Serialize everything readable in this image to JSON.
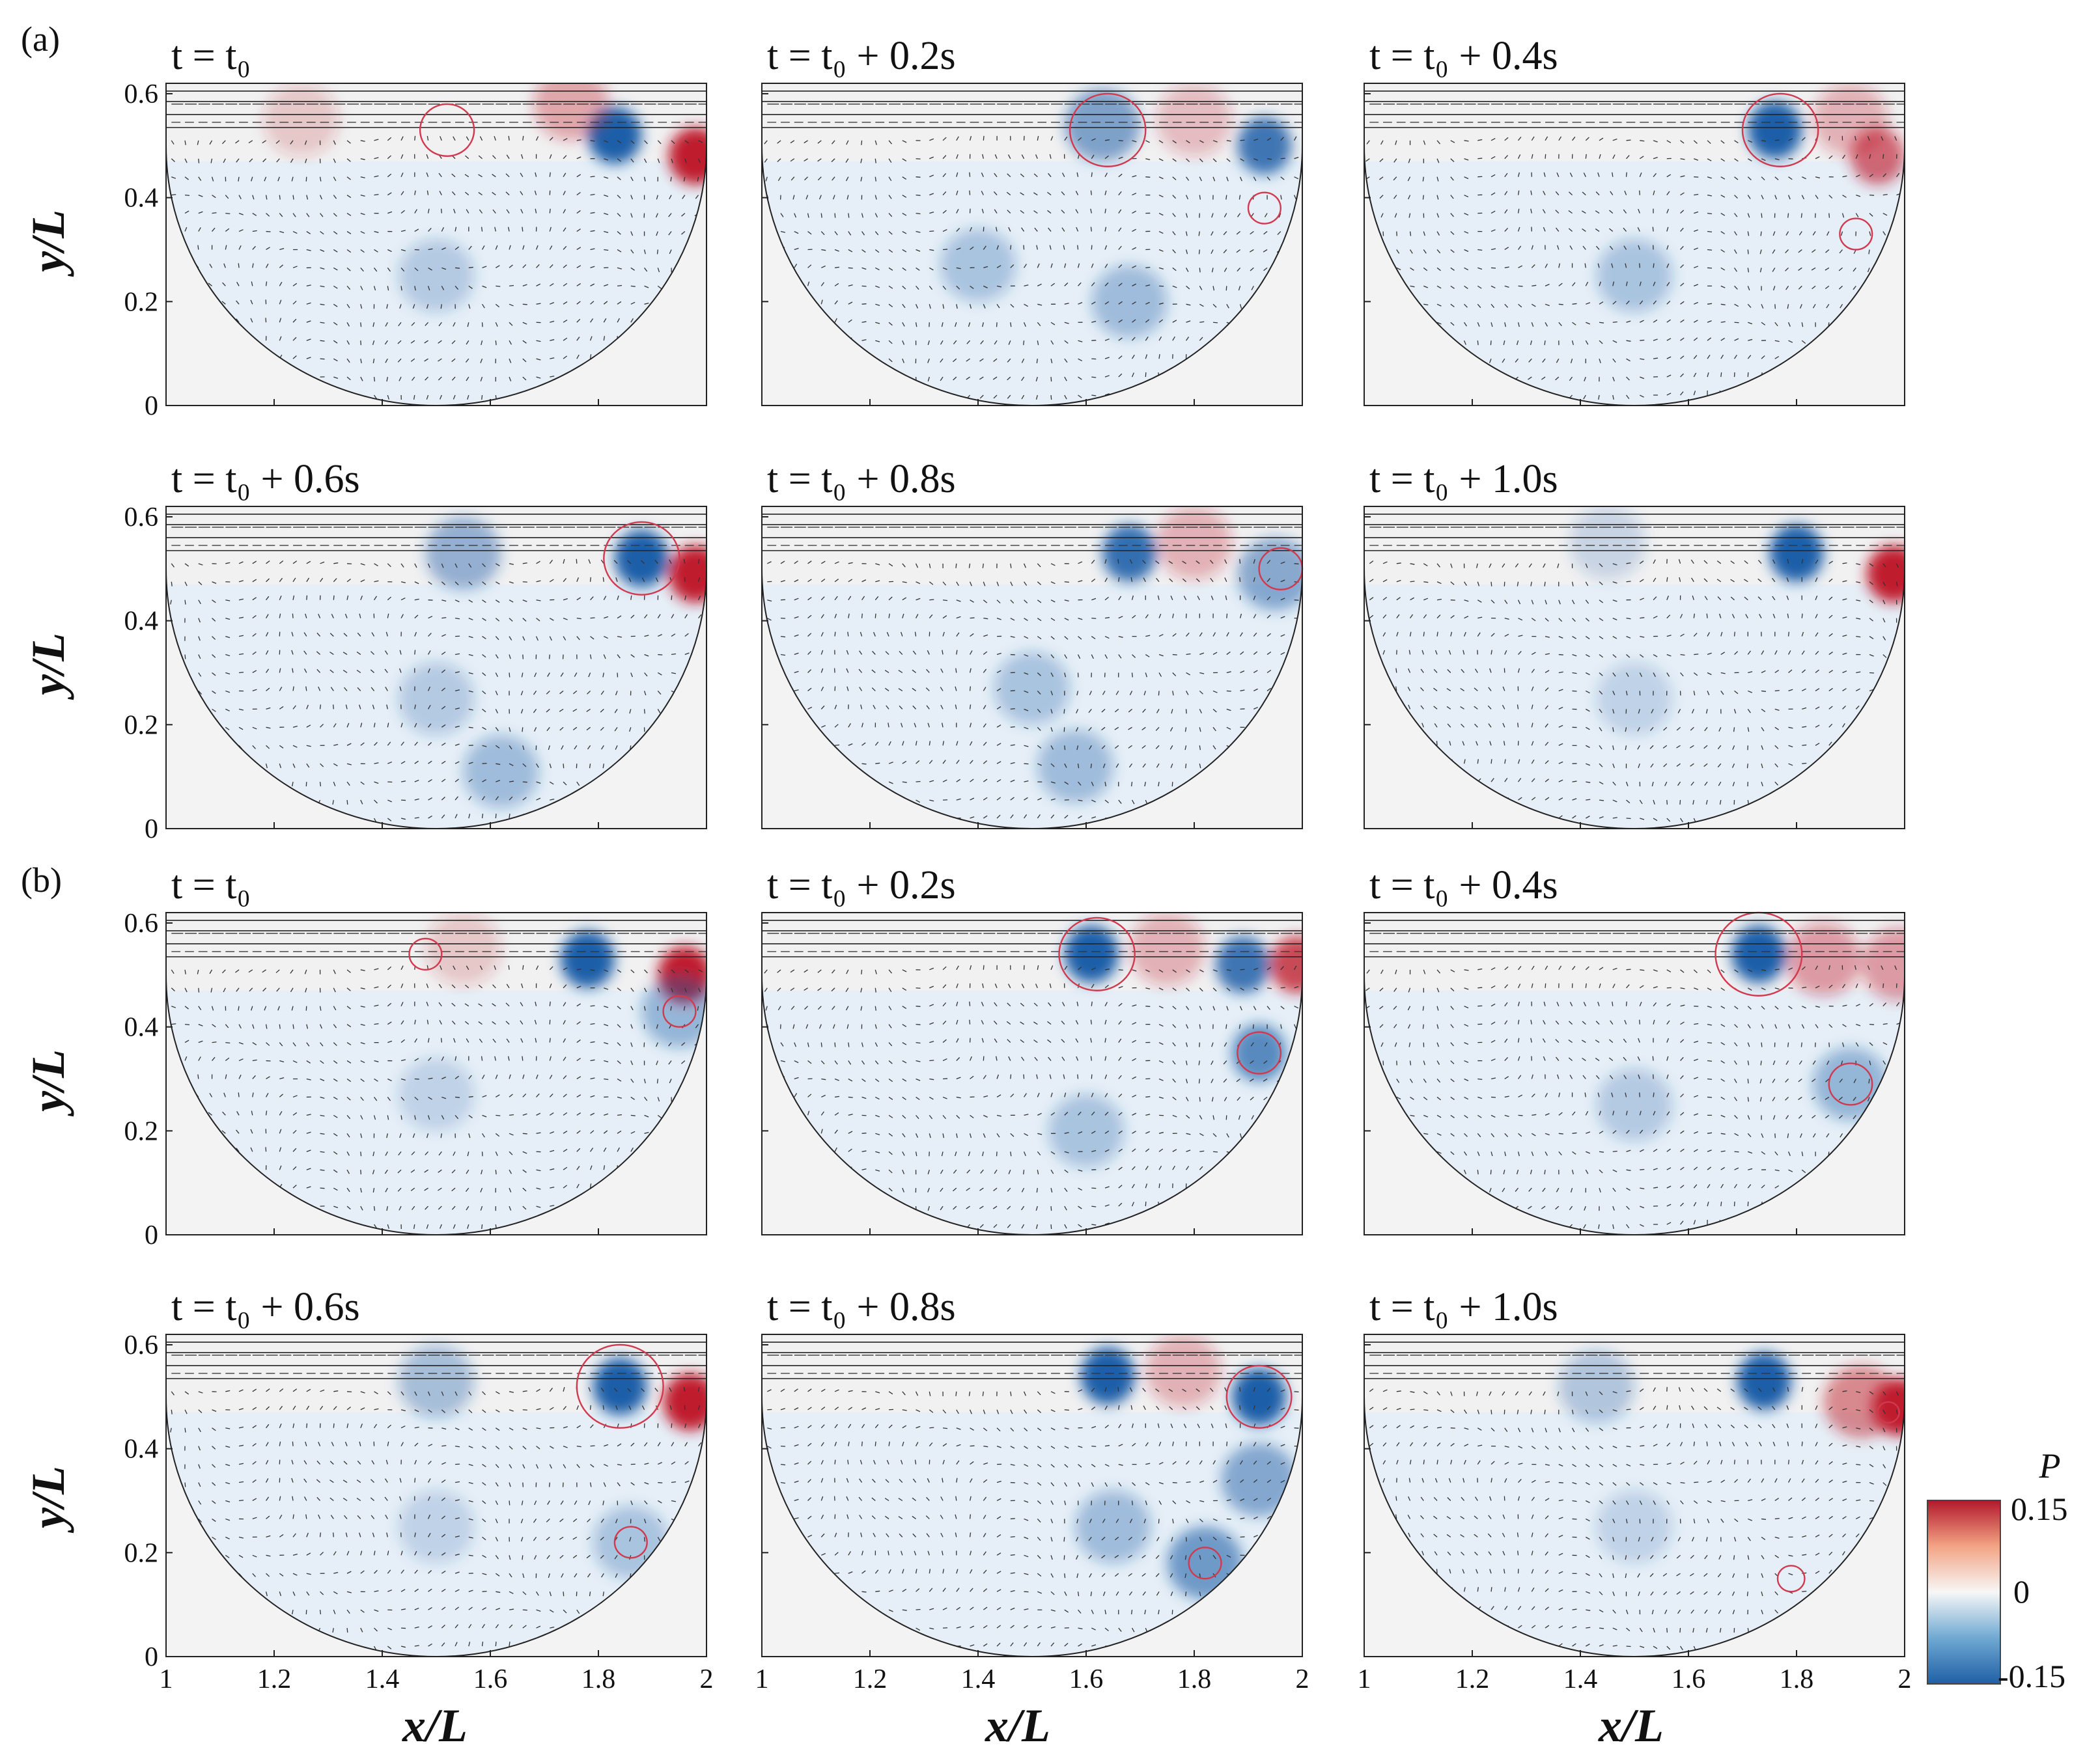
{
  "chart_data": {
    "type": "heatmap",
    "description_variable": "P",
    "panel_groups": [
      {
        "label": "(a)",
        "titles": [
          "t = t₀",
          "t = t₀ + 0.2s",
          "t = t₀ + 0.4s",
          "t = t₀ + 0.6s",
          "t = t₀ + 0.8s",
          "t = t₀ + 1.0s"
        ],
        "vortices": [
          [
            {
              "x": 1.83,
              "y": 0.52,
              "s": -1.0
            },
            {
              "x": 1.98,
              "y": 0.48,
              "s": 1.0
            },
            {
              "x": 1.75,
              "y": 0.58,
              "s": 0.35
            },
            {
              "x": 1.25,
              "y": 0.55,
              "s": 0.2
            },
            {
              "x": 1.5,
              "y": 0.25,
              "s": -0.25
            }
          ],
          [
            {
              "x": 1.63,
              "y": 0.54,
              "s": -0.55
            },
            {
              "x": 1.93,
              "y": 0.5,
              "s": -0.85
            },
            {
              "x": 1.4,
              "y": 0.27,
              "s": -0.3
            },
            {
              "x": 1.68,
              "y": 0.2,
              "s": -0.35
            },
            {
              "x": 1.8,
              "y": 0.55,
              "s": 0.25
            }
          ],
          [
            {
              "x": 1.76,
              "y": 0.53,
              "s": -1.0
            },
            {
              "x": 1.95,
              "y": 0.48,
              "s": 0.65
            },
            {
              "x": 1.5,
              "y": 0.25,
              "s": -0.3
            },
            {
              "x": 1.9,
              "y": 0.55,
              "s": 0.3
            }
          ],
          [
            {
              "x": 1.88,
              "y": 0.52,
              "s": -1.0
            },
            {
              "x": 1.98,
              "y": 0.49,
              "s": 1.0
            },
            {
              "x": 1.55,
              "y": 0.53,
              "s": -0.45
            },
            {
              "x": 1.62,
              "y": 0.11,
              "s": -0.35
            },
            {
              "x": 1.5,
              "y": 0.25,
              "s": -0.25
            }
          ],
          [
            {
              "x": 1.68,
              "y": 0.53,
              "s": -0.9
            },
            {
              "x": 1.95,
              "y": 0.49,
              "s": -0.5
            },
            {
              "x": 1.58,
              "y": 0.12,
              "s": -0.35
            },
            {
              "x": 1.5,
              "y": 0.27,
              "s": -0.3
            },
            {
              "x": 1.8,
              "y": 0.55,
              "s": 0.3
            }
          ],
          [
            {
              "x": 1.8,
              "y": 0.53,
              "s": -1.0
            },
            {
              "x": 1.98,
              "y": 0.49,
              "s": 1.0
            },
            {
              "x": 1.45,
              "y": 0.55,
              "s": -0.2
            },
            {
              "x": 1.5,
              "y": 0.25,
              "s": -0.2
            }
          ]
        ],
        "circles": [
          [
            {
              "x": 1.52,
              "y": 0.53,
              "r": 0.05
            }
          ],
          [
            {
              "x": 1.64,
              "y": 0.53,
              "r": 0.07
            },
            {
              "x": 1.93,
              "y": 0.38,
              "r": 0.03
            }
          ],
          [
            {
              "x": 1.77,
              "y": 0.53,
              "r": 0.07
            },
            {
              "x": 1.91,
              "y": 0.33,
              "r": 0.03
            }
          ],
          [
            {
              "x": 1.88,
              "y": 0.52,
              "r": 0.07
            }
          ],
          [
            {
              "x": 1.96,
              "y": 0.5,
              "r": 0.04
            }
          ],
          []
        ]
      },
      {
        "label": "(b)",
        "titles": [
          "t = t₀",
          "t = t₀ + 0.2s",
          "t = t₀ + 0.4s",
          "t = t₀ + 0.6s",
          "t = t₀ + 0.8s",
          "t = t₀ + 1.0s"
        ],
        "vortices": [
          [
            {
              "x": 1.78,
              "y": 0.53,
              "s": -1.0
            },
            {
              "x": 1.96,
              "y": 0.5,
              "s": 1.0
            },
            {
              "x": 1.95,
              "y": 0.43,
              "s": -0.4
            },
            {
              "x": 1.55,
              "y": 0.55,
              "s": 0.2
            },
            {
              "x": 1.5,
              "y": 0.27,
              "s": -0.2
            }
          ],
          [
            {
              "x": 1.61,
              "y": 0.54,
              "s": -1.0
            },
            {
              "x": 1.89,
              "y": 0.52,
              "s": -0.85
            },
            {
              "x": 1.92,
              "y": 0.35,
              "s": -0.7
            },
            {
              "x": 1.99,
              "y": 0.52,
              "s": 0.8
            },
            {
              "x": 1.75,
              "y": 0.55,
              "s": 0.3
            },
            {
              "x": 1.6,
              "y": 0.2,
              "s": -0.3
            }
          ],
          [
            {
              "x": 1.73,
              "y": 0.54,
              "s": -1.0
            },
            {
              "x": 1.85,
              "y": 0.53,
              "s": 0.4
            },
            {
              "x": 1.9,
              "y": 0.29,
              "s": -0.4
            },
            {
              "x": 1.99,
              "y": 0.52,
              "s": 0.4
            },
            {
              "x": 1.5,
              "y": 0.25,
              "s": -0.25
            }
          ],
          [
            {
              "x": 1.84,
              "y": 0.52,
              "s": -1.0
            },
            {
              "x": 1.97,
              "y": 0.49,
              "s": 1.0
            },
            {
              "x": 1.5,
              "y": 0.53,
              "s": -0.35
            },
            {
              "x": 1.86,
              "y": 0.22,
              "s": -0.3
            },
            {
              "x": 1.5,
              "y": 0.25,
              "s": -0.2
            }
          ],
          [
            {
              "x": 1.64,
              "y": 0.54,
              "s": -1.0
            },
            {
              "x": 1.92,
              "y": 0.5,
              "s": -1.0
            },
            {
              "x": 1.82,
              "y": 0.18,
              "s": -0.6
            },
            {
              "x": 1.92,
              "y": 0.34,
              "s": -0.5
            },
            {
              "x": 1.65,
              "y": 0.25,
              "s": -0.35
            },
            {
              "x": 1.78,
              "y": 0.55,
              "s": 0.3
            }
          ],
          [
            {
              "x": 1.74,
              "y": 0.53,
              "s": -1.0
            },
            {
              "x": 1.99,
              "y": 0.48,
              "s": 1.0
            },
            {
              "x": 1.92,
              "y": 0.49,
              "s": 0.5
            },
            {
              "x": 1.43,
              "y": 0.52,
              "s": -0.3
            },
            {
              "x": 1.5,
              "y": 0.25,
              "s": -0.2
            }
          ]
        ],
        "circles": [
          [
            {
              "x": 1.48,
              "y": 0.54,
              "r": 0.03
            },
            {
              "x": 1.95,
              "y": 0.43,
              "r": 0.03
            }
          ],
          [
            {
              "x": 1.62,
              "y": 0.54,
              "r": 0.07
            },
            {
              "x": 1.92,
              "y": 0.35,
              "r": 0.04
            }
          ],
          [
            {
              "x": 1.73,
              "y": 0.54,
              "r": 0.08
            },
            {
              "x": 1.9,
              "y": 0.29,
              "r": 0.04
            }
          ],
          [
            {
              "x": 1.84,
              "y": 0.52,
              "r": 0.08
            },
            {
              "x": 1.86,
              "y": 0.22,
              "r": 0.03
            }
          ],
          [
            {
              "x": 1.92,
              "y": 0.5,
              "r": 0.06
            },
            {
              "x": 1.82,
              "y": 0.18,
              "r": 0.03
            }
          ],
          [
            {
              "x": 1.97,
              "y": 0.47,
              "r": 0.02
            },
            {
              "x": 1.79,
              "y": 0.15,
              "r": 0.025
            }
          ]
        ]
      }
    ],
    "x_axis": {
      "label": "x/L",
      "range": [
        1,
        2
      ],
      "ticks": [
        "1",
        "1.2",
        "1.4",
        "1.6",
        "1.8",
        "2"
      ]
    },
    "y_axis": {
      "label": "y/L",
      "range": [
        0,
        0.62
      ],
      "ticks": [
        "0",
        "0.2",
        "0.4",
        "0.6"
      ]
    },
    "domain_circle": {
      "cx": 1.5,
      "cy": 0.5,
      "r": 0.5
    },
    "colorbar": {
      "label": "P",
      "min": -0.15,
      "max": 0.15,
      "ticks": [
        "0.15",
        "0",
        "-0.15"
      ],
      "colors": [
        "#2166ac",
        "#f7f7f7",
        "#b2182b"
      ]
    }
  }
}
